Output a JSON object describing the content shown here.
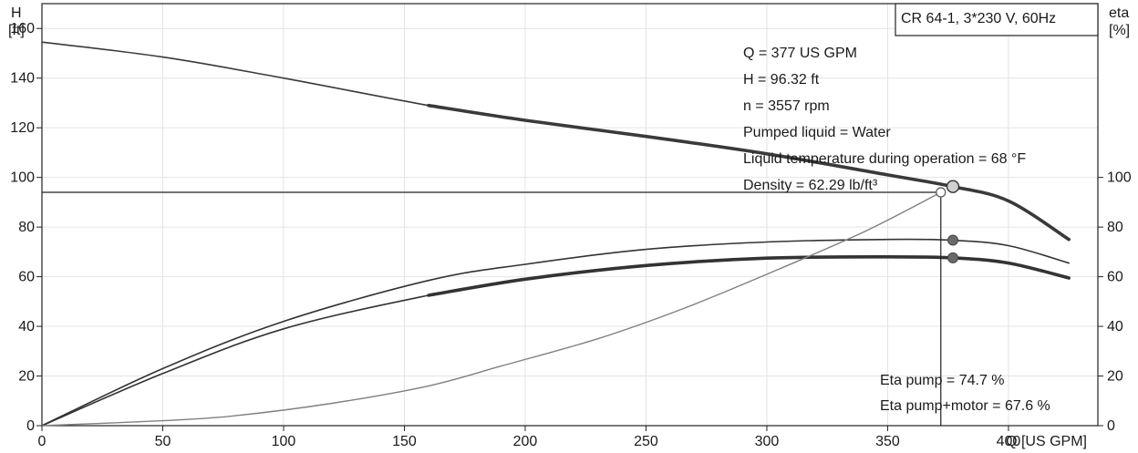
{
  "chart_data": {
    "type": "line",
    "title": "CR 64-1, 3*230 V, 60Hz",
    "left_axis": {
      "label": "H",
      "unit": "[ft]",
      "ylim": [
        0,
        170
      ],
      "ticks": [
        "0",
        "20",
        "40",
        "60",
        "80",
        "100",
        "120",
        "140",
        "160"
      ]
    },
    "right_axis": {
      "label": "eta",
      "unit": "[%]",
      "ylim": [
        0,
        170
      ],
      "ticks": [
        "0",
        "20",
        "40",
        "60",
        "80",
        "100"
      ]
    },
    "x_axis": {
      "label": "Q [US GPM]",
      "xlim": [
        0,
        437
      ],
      "ticks": [
        "0",
        "50",
        "100",
        "150",
        "200",
        "250",
        "300",
        "350",
        "400"
      ]
    },
    "grid": true,
    "series": [
      {
        "key": "head",
        "axis": "left",
        "x": [
          0,
          50,
          100,
          160,
          200,
          250,
          300,
          350,
          377,
          400,
          425
        ],
        "y": [
          154.5,
          148.5,
          140,
          129,
          123,
          116.5,
          109.5,
          101,
          96.32,
          90.5,
          75
        ],
        "thick_from": 160
      },
      {
        "key": "eta_pump",
        "axis": "right",
        "x": [
          0,
          50,
          100,
          160,
          200,
          250,
          300,
          350,
          377,
          400,
          425
        ],
        "y": [
          0,
          23,
          42,
          58.5,
          65,
          71,
          74,
          75,
          74.7,
          72.5,
          65.5
        ],
        "thick_from": null
      },
      {
        "key": "eta_pump_motor",
        "axis": "right",
        "x": [
          0,
          50,
          100,
          160,
          200,
          250,
          300,
          350,
          377,
          400,
          425
        ],
        "y": [
          0,
          21,
          39,
          52.5,
          59,
          64.5,
          67.5,
          68,
          67.6,
          65.5,
          59.5
        ],
        "thick_from": 160
      },
      {
        "key": "system_curve",
        "axis": "left",
        "x": [
          0,
          50,
          80,
          120,
          160,
          190,
          230,
          265,
          300,
          340,
          372
        ],
        "y": [
          0,
          2,
          4,
          9,
          16,
          24,
          35,
          47,
          61,
          78,
          94
        ]
      }
    ],
    "duty_point": {
      "q": 377,
      "h": 96.32,
      "eta_pump": 74.7,
      "eta_pump_motor": 67.6
    },
    "system_point": {
      "q": 372,
      "h": 94
    },
    "info_lines": [
      "Q = 377 US GPM",
      "H = 96.32 ft",
      "n = 3557 rpm",
      "Pumped liquid = Water",
      "Liquid temperature during operation = 68 °F",
      "Density = 62.29 lb/ft³"
    ],
    "eta_lines": [
      "Eta pump = 74.7 %",
      "Eta pump+motor = 67.6 %"
    ]
  },
  "colors": {
    "head": "#3a3a3a",
    "eta": "#333333",
    "system": "#808080",
    "marker_fill": "#6a6a6a",
    "duty_fill": "#d0d0d0"
  }
}
